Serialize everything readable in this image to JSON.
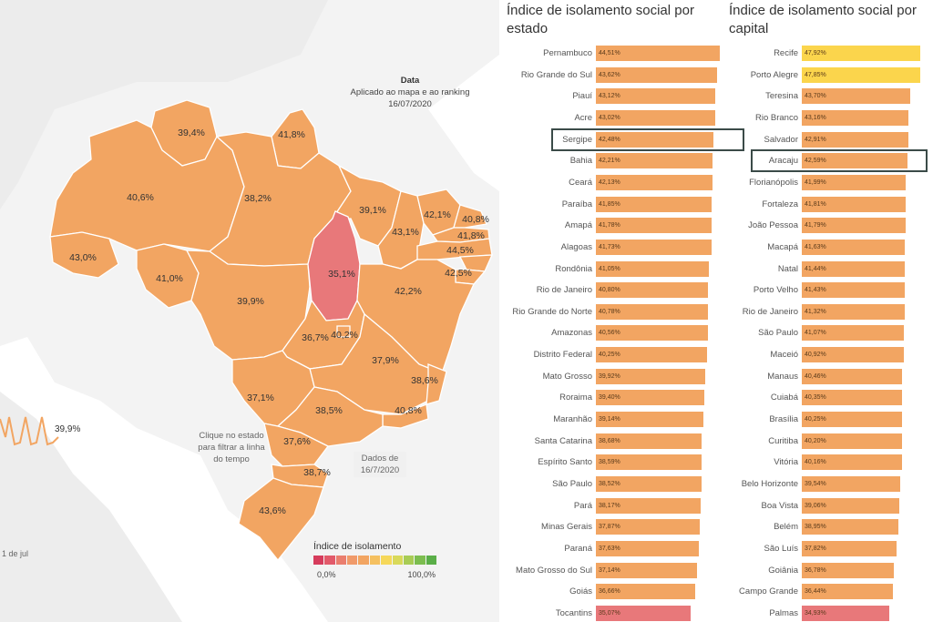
{
  "map": {
    "date_panel": {
      "title": "Data",
      "subtitle": "Aplicado ao mapa e ao ranking",
      "date": "16/07/2020"
    },
    "click_hint": "Clique no estado para filtrar a linha do tempo",
    "data_date": "Dados de 16/7/2020",
    "timeline_value": "39,9%",
    "timeline_axis_label": "1 de jul",
    "state_labels": [
      "39,4%",
      "41,8%",
      "40,6%",
      "38,2%",
      "39,1%",
      "42,1%",
      "40,8%",
      "43,1%",
      "41,8%",
      "44,5%",
      "43,0%",
      "41,0%",
      "35,1%",
      "42,5%",
      "42,2%",
      "39,9%",
      "36,7%",
      "40,2%",
      "37,9%",
      "38,6%",
      "37,1%",
      "38,5%",
      "40,8%",
      "37,6%",
      "38,7%",
      "43,6%"
    ],
    "legend": {
      "title": "Índice de isolamento",
      "min": "0,0%",
      "max": "100,0%",
      "colors": [
        "#d63c5c",
        "#e25a6a",
        "#ea7e6e",
        "#f09a6a",
        "#f2a562",
        "#f5c060",
        "#f6d85a",
        "#d9d95a",
        "#a8cc55",
        "#7cbd4f",
        "#5aae48"
      ]
    },
    "colors": {
      "base": "#f2a562",
      "low": "#e8787a",
      "highlight_box": "#3b4b48"
    }
  },
  "ranking_states": {
    "title": "Índice de isolamento social por estado",
    "rows": [
      {
        "name": "Pernambuco",
        "value": "44,51%",
        "v": 44.51
      },
      {
        "name": "Rio Grande do Sul",
        "value": "43,62%",
        "v": 43.62
      },
      {
        "name": "Piauí",
        "value": "43,12%",
        "v": 43.12
      },
      {
        "name": "Acre",
        "value": "43,02%",
        "v": 43.02
      },
      {
        "name": "Sergipe",
        "value": "42,48%",
        "v": 42.48
      },
      {
        "name": "Bahia",
        "value": "42,21%",
        "v": 42.21
      },
      {
        "name": "Ceará",
        "value": "42,13%",
        "v": 42.13
      },
      {
        "name": "Paraíba",
        "value": "41,85%",
        "v": 41.85
      },
      {
        "name": "Amapá",
        "value": "41,78%",
        "v": 41.78
      },
      {
        "name": "Alagoas",
        "value": "41,73%",
        "v": 41.73
      },
      {
        "name": "Rondônia",
        "value": "41,05%",
        "v": 41.05
      },
      {
        "name": "Rio de Janeiro",
        "value": "40,80%",
        "v": 40.8
      },
      {
        "name": "Rio Grande do Norte",
        "value": "40,78%",
        "v": 40.78
      },
      {
        "name": "Amazonas",
        "value": "40,56%",
        "v": 40.56
      },
      {
        "name": "Distrito Federal",
        "value": "40,25%",
        "v": 40.25
      },
      {
        "name": "Mato Grosso",
        "value": "39,92%",
        "v": 39.92
      },
      {
        "name": "Roraima",
        "value": "39,40%",
        "v": 39.4
      },
      {
        "name": "Maranhão",
        "value": "39,14%",
        "v": 39.14
      },
      {
        "name": "Santa Catarina",
        "value": "38,68%",
        "v": 38.68
      },
      {
        "name": "Espírito Santo",
        "value": "38,59%",
        "v": 38.59
      },
      {
        "name": "São Paulo",
        "value": "38,52%",
        "v": 38.52
      },
      {
        "name": "Pará",
        "value": "38,17%",
        "v": 38.17
      },
      {
        "name": "Minas Gerais",
        "value": "37,87%",
        "v": 37.87
      },
      {
        "name": "Paraná",
        "value": "37,63%",
        "v": 37.63
      },
      {
        "name": "Mato Grosso do Sul",
        "value": "37,14%",
        "v": 37.14
      },
      {
        "name": "Goiás",
        "value": "36,66%",
        "v": 36.66
      },
      {
        "name": "Tocantins",
        "value": "35,07%",
        "v": 35.07,
        "tone": "low"
      }
    ],
    "highlighted": "Sergipe"
  },
  "ranking_capitals": {
    "title": "Índice de isolamento social por capital",
    "rows": [
      {
        "name": "Recife",
        "value": "47,92%",
        "v": 47.92,
        "tone": "high"
      },
      {
        "name": "Porto Alegre",
        "value": "47,85%",
        "v": 47.85,
        "tone": "high"
      },
      {
        "name": "Teresina",
        "value": "43,70%",
        "v": 43.7
      },
      {
        "name": "Rio Branco",
        "value": "43,16%",
        "v": 43.16
      },
      {
        "name": "Salvador",
        "value": "42,91%",
        "v": 42.91
      },
      {
        "name": "Aracaju",
        "value": "42,59%",
        "v": 42.59
      },
      {
        "name": "Florianópolis",
        "value": "41,99%",
        "v": 41.99
      },
      {
        "name": "Fortaleza",
        "value": "41,81%",
        "v": 41.81
      },
      {
        "name": "João Pessoa",
        "value": "41,79%",
        "v": 41.79
      },
      {
        "name": "Macapá",
        "value": "41,63%",
        "v": 41.63
      },
      {
        "name": "Natal",
        "value": "41,44%",
        "v": 41.44
      },
      {
        "name": "Porto Velho",
        "value": "41,43%",
        "v": 41.43
      },
      {
        "name": "Rio de Janeiro",
        "value": "41,32%",
        "v": 41.32
      },
      {
        "name": "São Paulo",
        "value": "41,07%",
        "v": 41.07
      },
      {
        "name": "Maceió",
        "value": "40,92%",
        "v": 40.92
      },
      {
        "name": "Manaus",
        "value": "40,46%",
        "v": 40.46
      },
      {
        "name": "Cuiabá",
        "value": "40,35%",
        "v": 40.35
      },
      {
        "name": "Brasília",
        "value": "40,25%",
        "v": 40.25
      },
      {
        "name": "Curitiba",
        "value": "40,20%",
        "v": 40.2
      },
      {
        "name": "Vitória",
        "value": "40,16%",
        "v": 40.16
      },
      {
        "name": "Belo Horizonte",
        "value": "39,54%",
        "v": 39.54
      },
      {
        "name": "Boa Vista",
        "value": "39,06%",
        "v": 39.06
      },
      {
        "name": "Belém",
        "value": "38,95%",
        "v": 38.95
      },
      {
        "name": "São Luís",
        "value": "37,82%",
        "v": 37.82
      },
      {
        "name": "Goiânia",
        "value": "36,78%",
        "v": 36.78
      },
      {
        "name": "Campo Grande",
        "value": "36,44%",
        "v": 36.44
      },
      {
        "name": "Palmas",
        "value": "34,93%",
        "v": 34.93,
        "tone": "low"
      }
    ],
    "highlighted": "Aracaju"
  }
}
